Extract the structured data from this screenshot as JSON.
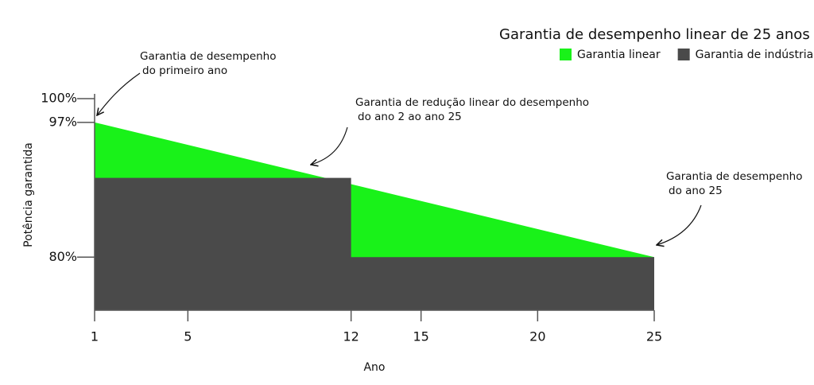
{
  "chart_data": {
    "type": "area",
    "title": "Garantia de desempenho linear de 25 anos",
    "x_label": "Ano",
    "y_label": "Potência garantida",
    "series": [
      {
        "name": "Garantia linear",
        "color": "#19f219",
        "x": [
          1,
          25
        ],
        "values": [
          97,
          80
        ]
      },
      {
        "name": "Garantia de indústria",
        "color": "#4a4a4a",
        "x": [
          1,
          12,
          12,
          25
        ],
        "values": [
          90,
          90,
          80,
          80
        ]
      }
    ],
    "xlim": [
      1,
      25
    ],
    "xticks": [
      1,
      5,
      12,
      15,
      20,
      25
    ],
    "ylim": [
      73.3,
      100
    ],
    "yticks": [
      {
        "value": 80,
        "label": "80%"
      },
      {
        "value": 97,
        "label": "97%"
      },
      {
        "value": 100,
        "label": "100%"
      }
    ],
    "legend": "top-right",
    "annotations": [
      {
        "lines": [
          "Garantia de desempenho",
          "do primeiro ano"
        ]
      },
      {
        "lines": [
          "Garantia de redução linear do desempenho",
          "do ano 2 ao ano 25"
        ]
      },
      {
        "lines": [
          "Garantia de desempenho",
          "do ano 25"
        ]
      }
    ]
  }
}
